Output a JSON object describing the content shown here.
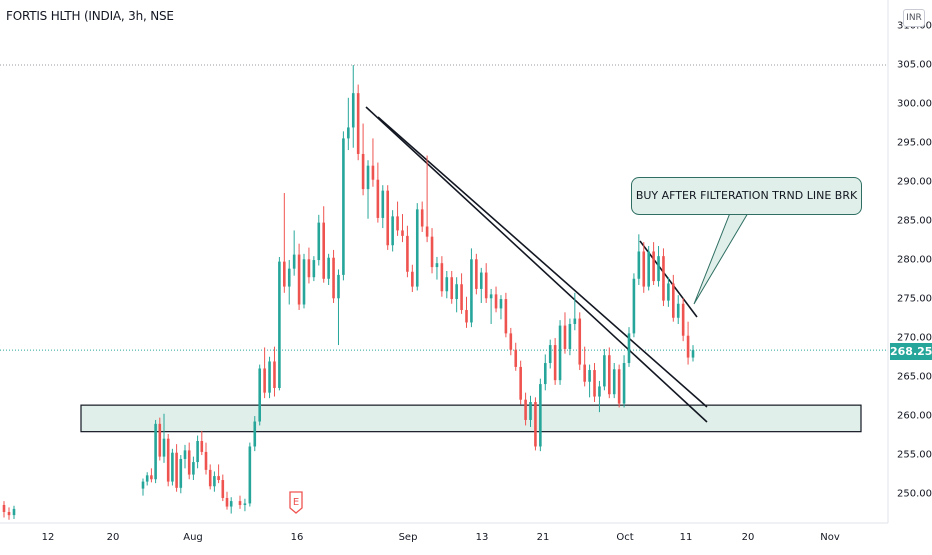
{
  "header": {
    "symbol_title": "FORTIS HLTH (INDIA, 3h, NSE",
    "currency": "INR"
  },
  "annotation": {
    "text": "BUY AFTER FILTERATION TRND LINE BRK"
  },
  "last_price": {
    "label": "268.25",
    "value": 268.25,
    "color": "#26a69a"
  },
  "earnings_marker": {
    "label": "E",
    "date_label": "16"
  },
  "chart_data": {
    "type": "candlestick",
    "title": "FORTIS HLTH (INDIA, 3h, NSE",
    "currency": "INR",
    "ylim": [
      246,
      311
    ],
    "y_ticks": [
      "250.00",
      "255.00",
      "260.00",
      "265.00",
      "270.00",
      "275.00",
      "280.00",
      "285.00",
      "290.00",
      "295.00",
      "300.00",
      "305.00",
      "310.00"
    ],
    "x_ticks": [
      "12",
      "20",
      "Aug",
      "16",
      "Sep",
      "13",
      "21",
      "Oct",
      "11",
      "20",
      "Nov"
    ],
    "colors": {
      "up": "#26a69a",
      "down": "#ef5350",
      "support_zone": "#e0efe9"
    },
    "candles_ohlc": [
      [
        248.4,
        248.9,
        246.8,
        247.5
      ],
      [
        247.5,
        248.1,
        246.5,
        247.1
      ],
      [
        247.1,
        248.3,
        246.6,
        247.9
      ],
      [
        250.5,
        251.8,
        249.6,
        251.4
      ],
      [
        251.4,
        252.6,
        250.9,
        252.2
      ],
      [
        252.2,
        253.1,
        251.3,
        251.7
      ],
      [
        251.7,
        259.3,
        251.2,
        258.8
      ],
      [
        258.8,
        259.6,
        254.1,
        254.6
      ],
      [
        254.6,
        260.1,
        253.8,
        256.9
      ],
      [
        256.9,
        257.5,
        250.8,
        251.4
      ],
      [
        251.4,
        255.6,
        250.9,
        255.1
      ],
      [
        255.1,
        256.2,
        250.1,
        250.6
      ],
      [
        250.6,
        254.8,
        249.9,
        254.3
      ],
      [
        254.3,
        256.1,
        253.1,
        255.4
      ],
      [
        255.4,
        256.4,
        251.7,
        252.3
      ],
      [
        252.3,
        254.6,
        251.6,
        253.9
      ],
      [
        253.9,
        257.3,
        253.1,
        256.6
      ],
      [
        256.6,
        257.9,
        254.8,
        255.2
      ],
      [
        255.2,
        256.4,
        252.3,
        252.9
      ],
      [
        252.9,
        253.6,
        250.4,
        250.8
      ],
      [
        250.8,
        252.7,
        250.1,
        252.1
      ],
      [
        252.1,
        253.6,
        251.2,
        251.6
      ],
      [
        251.6,
        252.3,
        248.9,
        249.3
      ],
      [
        249.3,
        250.1,
        247.8,
        248.2
      ],
      [
        248.2,
        249.4,
        247.3,
        248.9
      ],
      [
        248.9,
        249.6,
        247.9,
        248.4
      ],
      [
        248.4,
        249.2,
        247.6,
        248.6
      ],
      [
        248.6,
        256.4,
        248.2,
        255.9
      ],
      [
        255.9,
        259.8,
        255.3,
        259.1
      ],
      [
        259.1,
        266.4,
        258.6,
        265.9
      ],
      [
        265.9,
        268.6,
        262.1,
        262.8
      ],
      [
        262.8,
        267.4,
        262.1,
        266.8
      ],
      [
        266.8,
        268.7,
        262.3,
        263.4
      ],
      [
        263.4,
        280.2,
        263.1,
        279.6
      ],
      [
        279.6,
        288.4,
        275.6,
        276.4
      ],
      [
        276.4,
        279.8,
        274.1,
        278.7
      ],
      [
        278.7,
        283.6,
        277.8,
        280.5
      ],
      [
        280.5,
        281.9,
        273.4,
        274.1
      ],
      [
        274.1,
        280.6,
        273.6,
        279.9
      ],
      [
        279.9,
        281.4,
        276.8,
        277.6
      ],
      [
        277.6,
        280.3,
        277.1,
        279.8
      ],
      [
        279.8,
        285.6,
        279.1,
        284.6
      ],
      [
        284.6,
        286.7,
        276.9,
        277.4
      ],
      [
        277.4,
        280.6,
        276.6,
        280.1
      ],
      [
        280.1,
        281.1,
        274.3,
        274.9
      ],
      [
        274.9,
        278.6,
        268.9,
        277.9
      ],
      [
        277.9,
        296.3,
        277.2,
        295.4
      ],
      [
        295.4,
        300.6,
        293.9,
        296.8
      ],
      [
        296.8,
        304.8,
        294.2,
        301.2
      ],
      [
        301.2,
        302.3,
        292.6,
        293.4
      ],
      [
        293.4,
        297.3,
        288.1,
        288.9
      ],
      [
        288.9,
        292.6,
        285.1,
        291.9
      ],
      [
        291.9,
        295.4,
        289.2,
        290.1
      ],
      [
        290.1,
        292.3,
        284.6,
        285.2
      ],
      [
        285.2,
        289.4,
        283.9,
        288.7
      ],
      [
        288.7,
        289.4,
        281.1,
        281.7
      ],
      [
        281.7,
        286.2,
        280.9,
        285.4
      ],
      [
        285.4,
        287.3,
        282.9,
        283.6
      ],
      [
        283.6,
        285.7,
        282.1,
        282.9
      ],
      [
        282.9,
        284.2,
        277.6,
        278.3
      ],
      [
        278.3,
        279.2,
        275.7,
        276.4
      ],
      [
        276.4,
        287.1,
        275.9,
        286.3
      ],
      [
        286.3,
        287.3,
        283.4,
        284.1
      ],
      [
        284.1,
        293.2,
        282.1,
        282.8
      ],
      [
        282.8,
        283.9,
        278.1,
        278.9
      ],
      [
        278.9,
        280.2,
        277.3,
        279.4
      ],
      [
        279.4,
        280.3,
        275.1,
        275.8
      ],
      [
        275.8,
        278.4,
        274.9,
        277.6
      ],
      [
        277.6,
        278.4,
        274.2,
        274.8
      ],
      [
        274.8,
        277.6,
        273.1,
        276.7
      ],
      [
        276.7,
        278.1,
        272.9,
        273.4
      ],
      [
        273.4,
        275.1,
        271.1,
        271.8
      ],
      [
        271.8,
        281.3,
        271.2,
        279.9
      ],
      [
        279.9,
        280.6,
        275.4,
        276.1
      ],
      [
        276.1,
        278.8,
        274.3,
        278.2
      ],
      [
        278.2,
        279.4,
        274.3,
        274.9
      ],
      [
        274.9,
        276.1,
        271.6,
        275.4
      ],
      [
        275.4,
        276.4,
        273.1,
        273.6
      ],
      [
        273.6,
        275.3,
        272.2,
        274.8
      ],
      [
        274.8,
        275.6,
        269.9,
        270.4
      ],
      [
        270.4,
        271.1,
        267.6,
        268.3
      ],
      [
        268.3,
        269.2,
        265.6,
        266.1
      ],
      [
        266.1,
        266.9,
        261.3,
        261.9
      ],
      [
        261.9,
        262.8,
        258.6,
        259.3
      ],
      [
        259.3,
        262.4,
        258.4,
        261.6
      ],
      [
        261.6,
        262.2,
        255.4,
        255.9
      ],
      [
        255.9,
        264.6,
        255.3,
        263.9
      ],
      [
        263.9,
        267.7,
        263.1,
        266.6
      ],
      [
        266.6,
        269.6,
        265.9,
        268.9
      ],
      [
        268.9,
        269.8,
        263.8,
        264.4
      ],
      [
        264.4,
        272.1,
        263.8,
        271.4
      ],
      [
        271.4,
        273.1,
        267.8,
        268.4
      ],
      [
        268.4,
        272.3,
        267.6,
        271.6
      ],
      [
        271.6,
        275.6,
        270.8,
        272.3
      ],
      [
        272.3,
        273.1,
        265.7,
        266.4
      ],
      [
        266.4,
        268.7,
        263.6,
        264.2
      ],
      [
        264.2,
        266.4,
        262.2,
        265.7
      ],
      [
        265.7,
        266.6,
        261.6,
        262.3
      ],
      [
        262.3,
        264.3,
        260.3,
        263.6
      ],
      [
        263.6,
        268.4,
        263.1,
        267.6
      ],
      [
        267.6,
        268.6,
        262.1,
        262.6
      ],
      [
        262.6,
        266.6,
        262.1,
        265.8
      ],
      [
        265.8,
        266.4,
        260.9,
        261.4
      ],
      [
        261.4,
        267.6,
        260.9,
        266.6
      ],
      [
        266.6,
        271.2,
        266.1,
        270.4
      ],
      [
        270.4,
        278.1,
        269.9,
        277.4
      ],
      [
        277.4,
        283.1,
        276.6,
        280.9
      ],
      [
        280.9,
        282.1,
        275.6,
        276.4
      ],
      [
        276.4,
        281.6,
        275.9,
        280.9
      ],
      [
        280.9,
        282.1,
        276.6,
        277.1
      ],
      [
        277.1,
        281.6,
        276.4,
        280.3
      ],
      [
        280.3,
        281.3,
        273.9,
        274.6
      ],
      [
        274.6,
        277.6,
        273.8,
        276.8
      ],
      [
        276.8,
        277.9,
        271.9,
        272.4
      ],
      [
        272.4,
        275.3,
        271.6,
        274.2
      ],
      [
        274.2,
        274.9,
        269.4,
        270.1
      ],
      [
        270.1,
        271.9,
        266.4,
        267.3
      ],
      [
        267.3,
        268.9,
        266.8,
        268.25
      ]
    ],
    "trendlines": [
      {
        "from": [
          "late Aug",
          300.0
        ],
        "to": [
          "mid Oct",
          261.1
        ],
        "note": "upper descending"
      },
      {
        "from": [
          "late Aug",
          301.3
        ],
        "to": [
          "mid Oct",
          259.4
        ],
        "note": "lower descending"
      },
      {
        "from": [
          "early Oct",
          282.3
        ],
        "to": [
          "mid Oct",
          273.1
        ],
        "note": "short-term descending"
      }
    ],
    "support_zone": [
      257.8,
      261.2
    ],
    "last_price": 268.25,
    "grid": false,
    "legend": "none"
  }
}
